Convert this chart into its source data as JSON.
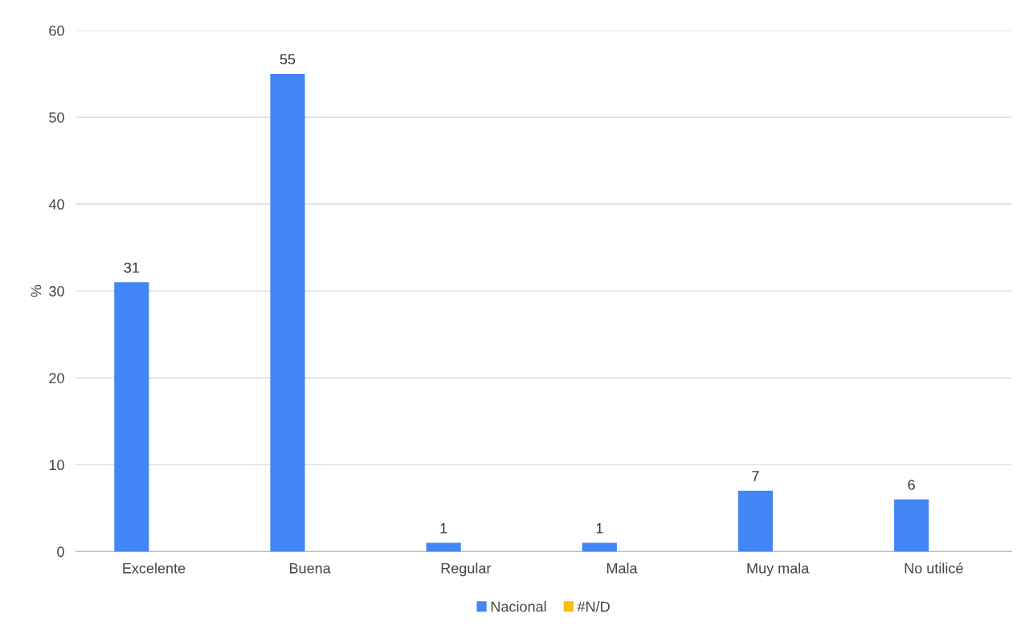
{
  "chart_data": {
    "type": "bar",
    "ylabel": "%",
    "categories": [
      "Excelente",
      "Buena",
      "Regular",
      "Mala",
      "Muy mala",
      "No utilicé"
    ],
    "series": [
      {
        "name": "Nacional",
        "color": "#4285f4",
        "values": [
          31,
          55,
          1,
          1,
          7,
          6
        ]
      },
      {
        "name": "#N/D",
        "color": "#fbbc04",
        "values": [
          null,
          null,
          null,
          null,
          null,
          null
        ]
      }
    ],
    "ylim": [
      0,
      60
    ],
    "yticks": [
      0,
      10,
      20,
      30,
      40,
      50,
      60
    ],
    "grid": "y",
    "legend": "bottom",
    "data_labels": true
  }
}
